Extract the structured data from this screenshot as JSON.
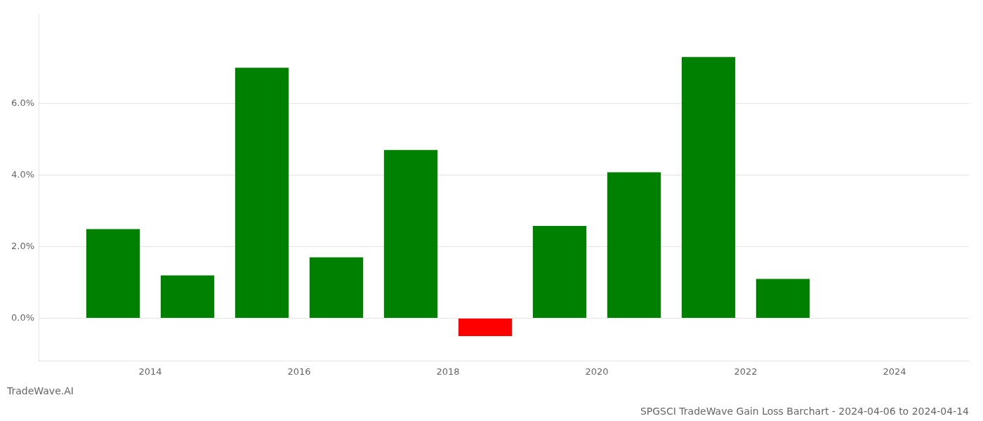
{
  "chart_data": {
    "type": "bar",
    "title": "SPGSCI TradeWave Gain Loss Barchart - 2024-04-06 to 2024-04-14",
    "annotations": [
      "TradeWave.AI"
    ],
    "x": [
      2013.5,
      2014.5,
      2015.5,
      2016.5,
      2017.5,
      2018.5,
      2019.5,
      2020.5,
      2021.5,
      2022.5,
      2023.5
    ],
    "values": [
      0.0249,
      0.012,
      0.07,
      0.017,
      0.047,
      -0.005,
      0.0258,
      0.0408,
      0.073,
      0.011,
      0.0
    ],
    "colors": [
      "#008000",
      "#008000",
      "#008000",
      "#008000",
      "#008000",
      "#ff0000",
      "#008000",
      "#008000",
      "#008000",
      "#008000",
      "#008000"
    ],
    "xlim": [
      2012.5,
      2025.0
    ],
    "xticks": [
      2014,
      2016,
      2018,
      2020,
      2022,
      2024
    ],
    "ylim": [
      -0.012,
      0.085
    ],
    "yticks": [
      {
        "value": 0.0,
        "label": "0.0%"
      },
      {
        "value": 0.02,
        "label": "2.0%"
      },
      {
        "value": 0.04,
        "label": "4.0%"
      },
      {
        "value": 0.06,
        "label": "6.0%"
      }
    ],
    "grid": true
  }
}
